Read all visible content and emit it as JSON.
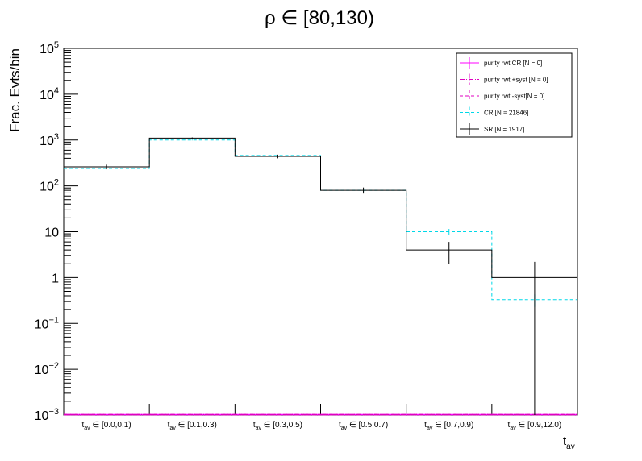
{
  "chart_data": {
    "type": "step-histogram",
    "title": "ρ ∈ [80,130)",
    "ylabel": "Frac. Evts/bin",
    "xlabel": "t_av",
    "yscale": "log",
    "ylim": [
      0.001,
      100000
    ],
    "y_tick_labels": [
      "10^-3",
      "10^-2",
      "10^-1",
      "1",
      "10",
      "10^2",
      "10^3",
      "10^4",
      "10^5"
    ],
    "categories": [
      "[0.0,0.1)",
      "[0.1,0.3)",
      "[0.3,0.5)",
      "[0.5,0.7)",
      "[0.7,0.9)",
      "[0.9,12.0)"
    ],
    "category_prefix": "t_av ∈ ",
    "series": [
      {
        "name": "purity rwt CR [N = 0]",
        "color": "#ff00ff",
        "style": "solid",
        "values": [
          0,
          0,
          0,
          0,
          0,
          0
        ]
      },
      {
        "name": "purity rwt +syst [N = 0]",
        "color": "#e000c0",
        "style": "dashdot",
        "values": [
          0,
          0,
          0,
          0,
          0,
          0
        ]
      },
      {
        "name": "purity rwt -syst[N = 0]",
        "color": "#e000c0",
        "style": "dashed",
        "values": [
          0,
          0,
          0,
          0,
          0,
          0
        ]
      },
      {
        "name": "CR [N = 21846]",
        "color": "#00d8e8",
        "style": "dashed",
        "values": [
          240,
          1000,
          460,
          80,
          10,
          0.33
        ],
        "errors_low": [
          8,
          20,
          14,
          6,
          1.5,
          0.1
        ],
        "errors_high": [
          8,
          20,
          14,
          6,
          1.5,
          0.1
        ]
      },
      {
        "name": "SR [N = 1917]",
        "color": "#000000",
        "style": "solid",
        "values": [
          260,
          1100,
          440,
          80,
          4,
          1
        ],
        "errors_low": [
          30,
          40,
          40,
          12,
          2,
          1
        ],
        "errors_high": [
          30,
          40,
          40,
          12,
          2,
          1.2
        ]
      }
    ],
    "legend_position": "top-right",
    "grid": false
  }
}
